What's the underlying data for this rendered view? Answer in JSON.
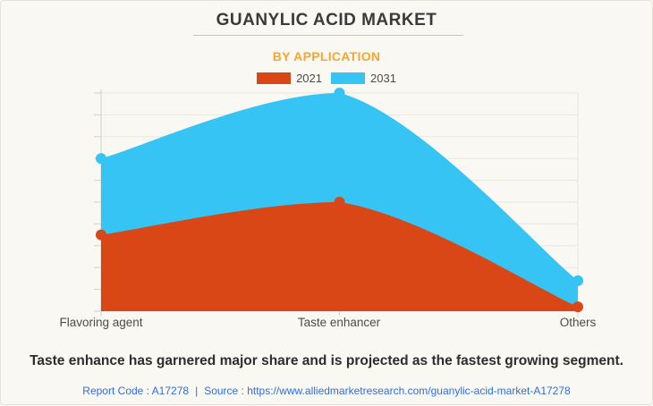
{
  "card": {
    "title": "GUANYLIC ACID MARKET",
    "subtitle": "BY APPLICATION"
  },
  "legend": [
    {
      "label": "2021",
      "color": "#d94716"
    },
    {
      "label": "2031",
      "color": "#35c4f3"
    }
  ],
  "chart_data": {
    "type": "area",
    "title": "GUANYLIC ACID MARKET",
    "subtitle": "BY APPLICATION",
    "categories": [
      "Flavoring agent",
      "Taste enhancer",
      "Others"
    ],
    "series": [
      {
        "name": "2031",
        "color": "#35c4f3",
        "values": [
          70,
          100,
          14
        ]
      },
      {
        "name": "2021",
        "color": "#d94716",
        "values": [
          35,
          50,
          2
        ]
      }
    ],
    "ylim": [
      0,
      100
    ],
    "yticks_count": 11,
    "grid": true,
    "legend_position": "top",
    "y_axis_labels_shown": false
  },
  "footer": {
    "caption": "Taste enhance has garnered major share and is projected as the fastest growing segment.",
    "report_code": "Report Code : A17278",
    "separator": "|",
    "source": "Source : https://www.alliedmarketresearch.com/guanylic-acid-market-A17278"
  },
  "colors": {
    "background": "#faf8f2",
    "border": "#e6e3db",
    "title_text": "#3a3a3a",
    "subtitle_text": "#f7a62b",
    "axis_text": "#4b4b4b",
    "caption_text": "#2d2d2d",
    "link_text": "#2b6fdf",
    "grid_line": "#e9e6df",
    "axis_line": "#d4d1ca"
  }
}
